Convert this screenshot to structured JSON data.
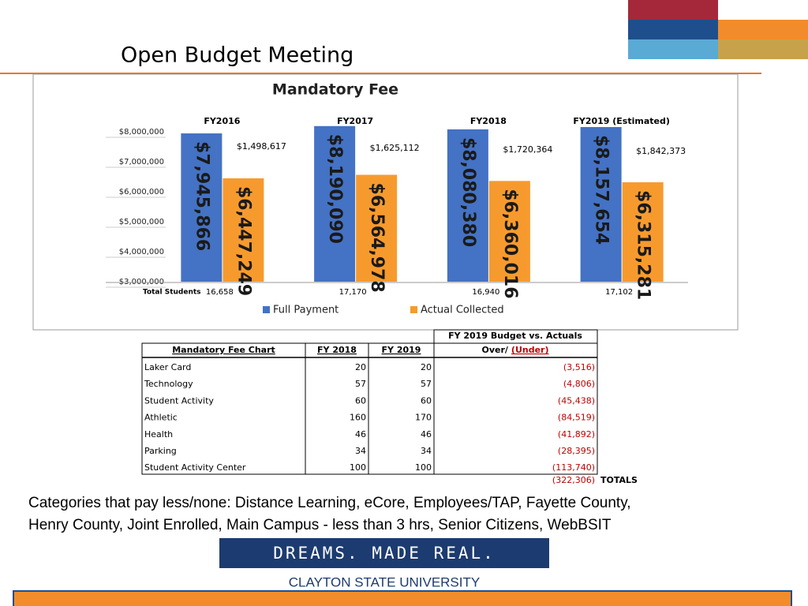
{
  "slide": {
    "title": "Open Budget Meeting",
    "body": [
      "Categories that pay less/none: Distance Learning, eCore, Employees/TAP, Fayette County,",
      "Henry County, Joint Enrolled, Main Campus - less than 3 hrs, Senior Citizens, WebBSIT"
    ],
    "logo": {
      "tagline": "DREAMS.  MADE  REAL.",
      "name": "CLAYTON STATE UNIVERSITY"
    }
  },
  "chart_data": {
    "type": "bar",
    "title": "Mandatory Fee",
    "categories": [
      "FY2016",
      "FY2017",
      "FY2018",
      "FY2019 (Estimated)"
    ],
    "series": [
      {
        "name": "Full Payment",
        "color": "#4472c4",
        "values": [
          7945866,
          8190090,
          8080380,
          8157654
        ],
        "value_labels": [
          "$7,945,866",
          "$8,190,090",
          "$8,080,380",
          "$8,157,654"
        ]
      },
      {
        "name": "Actual Collected",
        "color": "#f79a2e",
        "values": [
          6447249,
          6564978,
          6360016,
          6315281
        ],
        "value_labels": [
          "$6,447,249",
          "$6,564,978",
          "$6,360,016",
          "$6,315,281"
        ]
      }
    ],
    "annotations": [
      "$1,498,617",
      "$1,625,112",
      "$1,720,364",
      "$1,842,373"
    ],
    "students": {
      "label": "Total Students",
      "counts": [
        "16,658",
        "17,170",
        "16,940",
        "17,102"
      ]
    },
    "ylim": [
      3000000,
      8200000
    ],
    "yticks": [
      {
        "value": 3000000,
        "label": "$3,000,000"
      },
      {
        "value": 4000000,
        "label": "$4,000,000"
      },
      {
        "value": 5000000,
        "label": "$5,000,000"
      },
      {
        "value": 6000000,
        "label": "$6,000,000"
      },
      {
        "value": 7000000,
        "label": "$7,000,000"
      },
      {
        "value": 8000000,
        "label": "$8,000,000"
      }
    ],
    "legend": "bottom"
  },
  "table": {
    "super_header": "FY 2019 Budget vs. Actuals",
    "over_label": "Over/",
    "under_label": "(Under)",
    "header": [
      "Mandatory Fee Chart",
      "FY 2018",
      "FY 2019"
    ],
    "rows": [
      [
        "Laker Card",
        20,
        20,
        "(3,516)"
      ],
      [
        "Technology",
        57,
        57,
        "(4,806)"
      ],
      [
        "Student Activity",
        60,
        60,
        "(45,438)"
      ],
      [
        "Athletic",
        160,
        170,
        "(84,519)"
      ],
      [
        "Health",
        46,
        46,
        "(41,892)"
      ],
      [
        "Parking",
        34,
        34,
        "(28,395)"
      ],
      [
        "Student Activity Center",
        100,
        100,
        "(113,740)"
      ]
    ],
    "totals": {
      "value": "(322,306)",
      "label": "TOTALS"
    }
  }
}
